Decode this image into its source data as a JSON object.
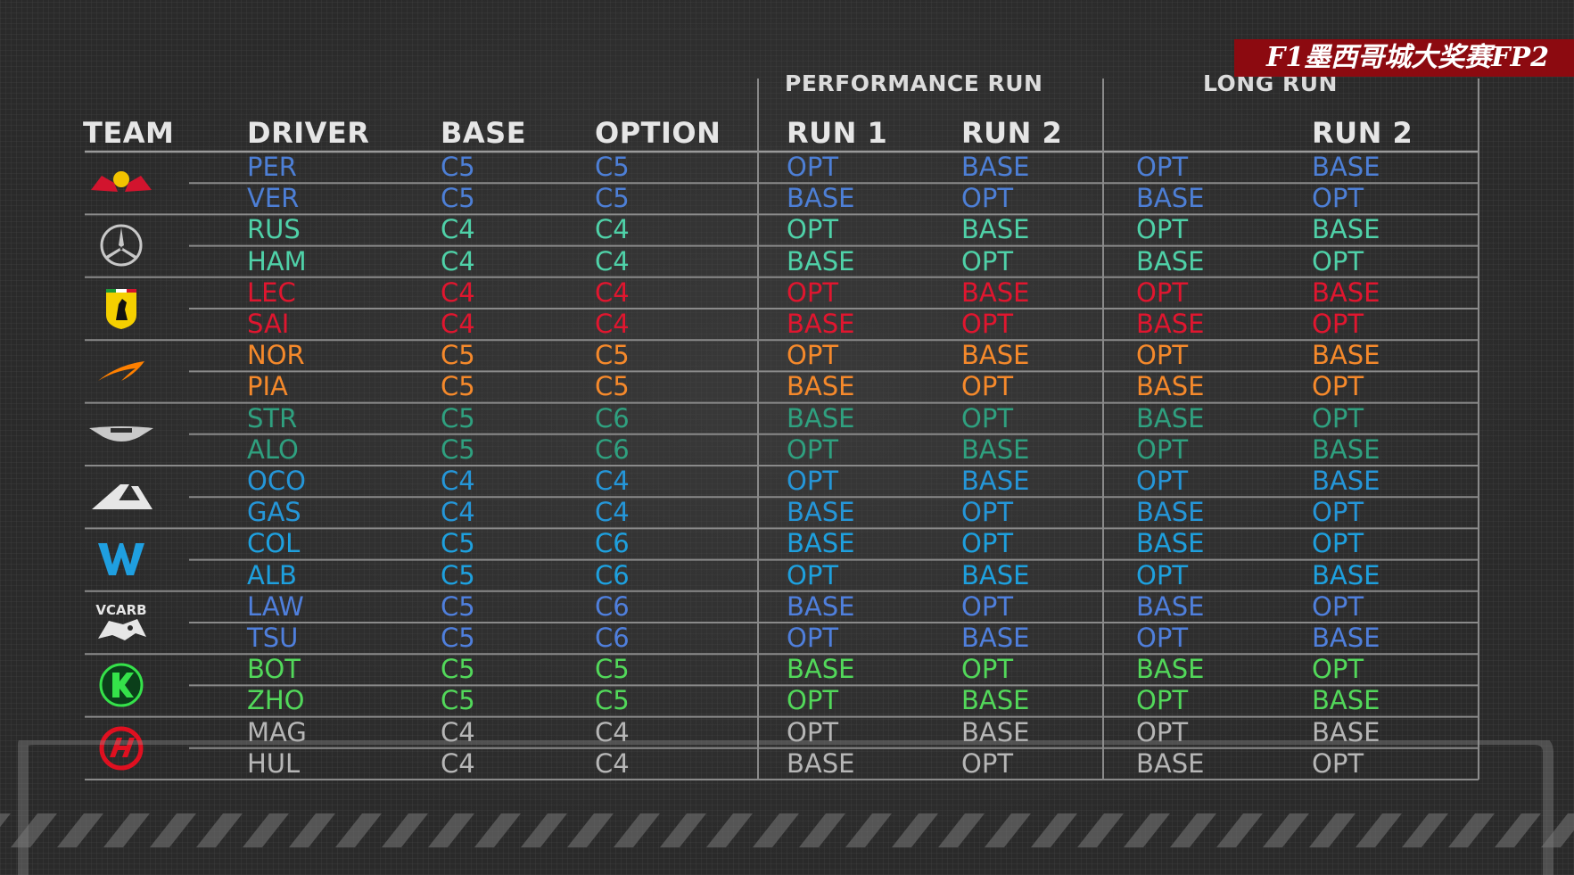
{
  "banner": "F1墨西哥城大奖赛FP2",
  "headers": {
    "team": "TEAM",
    "driver": "DRIVER",
    "base": "BASE",
    "option": "OPTION",
    "perf_group": "PERFORMANCE RUN",
    "long_group": "LONG RUN",
    "perf_run1": "RUN 1",
    "perf_run2": "RUN 2",
    "long_run1": "",
    "long_run2": "RUN 2"
  },
  "teams": [
    {
      "icon": "red-bull-logo-icon",
      "color": "#4d7fd6",
      "drivers": [
        {
          "code": "PER",
          "base": "C5",
          "option": "C5",
          "perf1": "OPT",
          "perf2": "BASE",
          "long1": "OPT",
          "long2": "BASE"
        },
        {
          "code": "VER",
          "base": "C5",
          "option": "C5",
          "perf1": "BASE",
          "perf2": "OPT",
          "long1": "BASE",
          "long2": "OPT"
        }
      ]
    },
    {
      "icon": "mercedes-logo-icon",
      "color": "#4fd1a8",
      "drivers": [
        {
          "code": "RUS",
          "base": "C4",
          "option": "C4",
          "perf1": "OPT",
          "perf2": "BASE",
          "long1": "OPT",
          "long2": "BASE"
        },
        {
          "code": "HAM",
          "base": "C4",
          "option": "C4",
          "perf1": "BASE",
          "perf2": "OPT",
          "long1": "BASE",
          "long2": "OPT"
        }
      ]
    },
    {
      "icon": "ferrari-logo-icon",
      "color": "#e0162f",
      "drivers": [
        {
          "code": "LEC",
          "base": "C4",
          "option": "C4",
          "perf1": "OPT",
          "perf2": "BASE",
          "long1": "OPT",
          "long2": "BASE"
        },
        {
          "code": "SAI",
          "base": "C4",
          "option": "C4",
          "perf1": "BASE",
          "perf2": "OPT",
          "long1": "BASE",
          "long2": "OPT"
        }
      ]
    },
    {
      "icon": "mclaren-logo-icon",
      "color": "#f5892b",
      "drivers": [
        {
          "code": "NOR",
          "base": "C5",
          "option": "C5",
          "perf1": "OPT",
          "perf2": "BASE",
          "long1": "OPT",
          "long2": "BASE"
        },
        {
          "code": "PIA",
          "base": "C5",
          "option": "C5",
          "perf1": "BASE",
          "perf2": "OPT",
          "long1": "BASE",
          "long2": "OPT"
        }
      ]
    },
    {
      "icon": "aston-martin-logo-icon",
      "color": "#2fa07f",
      "drivers": [
        {
          "code": "STR",
          "base": "C5",
          "option": "C6",
          "perf1": "BASE",
          "perf2": "OPT",
          "long1": "BASE",
          "long2": "OPT"
        },
        {
          "code": "ALO",
          "base": "C5",
          "option": "C6",
          "perf1": "OPT",
          "perf2": "BASE",
          "long1": "OPT",
          "long2": "BASE"
        }
      ]
    },
    {
      "icon": "alpine-logo-icon",
      "color": "#2596d8",
      "drivers": [
        {
          "code": "OCO",
          "base": "C4",
          "option": "C4",
          "perf1": "OPT",
          "perf2": "BASE",
          "long1": "OPT",
          "long2": "BASE"
        },
        {
          "code": "GAS",
          "base": "C4",
          "option": "C4",
          "perf1": "BASE",
          "perf2": "OPT",
          "long1": "BASE",
          "long2": "OPT"
        }
      ]
    },
    {
      "icon": "williams-logo-icon",
      "color": "#1ea0de",
      "drivers": [
        {
          "code": "COL",
          "base": "C5",
          "option": "C6",
          "perf1": "BASE",
          "perf2": "OPT",
          "long1": "BASE",
          "long2": "OPT"
        },
        {
          "code": "ALB",
          "base": "C5",
          "option": "C6",
          "perf1": "OPT",
          "perf2": "BASE",
          "long1": "OPT",
          "long2": "BASE"
        }
      ]
    },
    {
      "icon": "vcarb-logo-icon",
      "color": "#4f7fdc",
      "drivers": [
        {
          "code": "LAW",
          "base": "C5",
          "option": "C6",
          "perf1": "BASE",
          "perf2": "OPT",
          "long1": "BASE",
          "long2": "OPT"
        },
        {
          "code": "TSU",
          "base": "C5",
          "option": "C6",
          "perf1": "OPT",
          "perf2": "BASE",
          "long1": "OPT",
          "long2": "BASE"
        }
      ]
    },
    {
      "icon": "kick-sauber-logo-icon",
      "color": "#52d85a",
      "drivers": [
        {
          "code": "BOT",
          "base": "C5",
          "option": "C5",
          "perf1": "BASE",
          "perf2": "OPT",
          "long1": "BASE",
          "long2": "OPT"
        },
        {
          "code": "ZHO",
          "base": "C5",
          "option": "C5",
          "perf1": "OPT",
          "perf2": "BASE",
          "long1": "OPT",
          "long2": "BASE"
        }
      ]
    },
    {
      "icon": "haas-logo-icon",
      "color": "#b6b6b6",
      "drivers": [
        {
          "code": "MAG",
          "base": "C4",
          "option": "C4",
          "perf1": "OPT",
          "perf2": "BASE",
          "long1": "OPT",
          "long2": "BASE"
        },
        {
          "code": "HUL",
          "base": "C4",
          "option": "C4",
          "perf1": "BASE",
          "perf2": "OPT",
          "long1": "BASE",
          "long2": "OPT"
        }
      ]
    }
  ]
}
